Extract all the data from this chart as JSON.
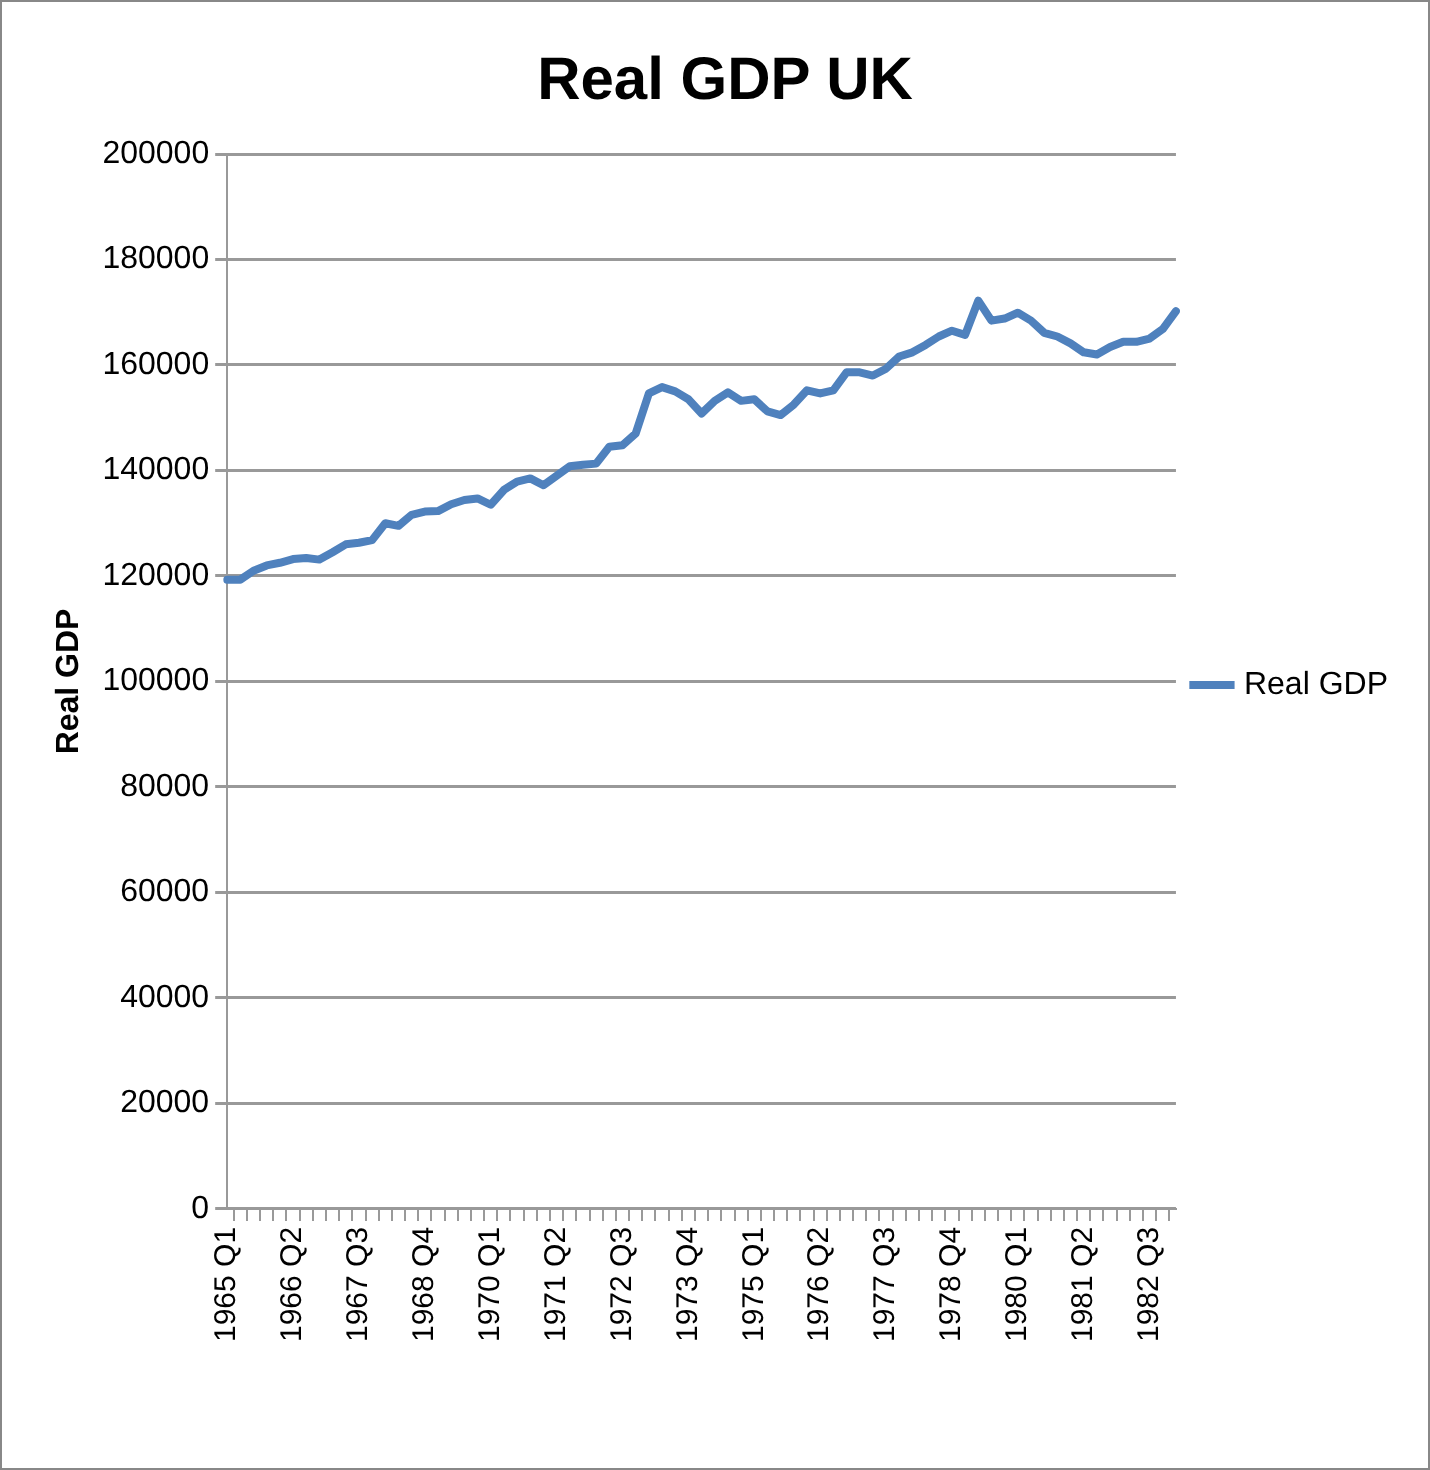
{
  "chart_data": {
    "type": "line",
    "title": "Real GDP UK",
    "ylabel": "Real GDP",
    "categories": [
      "1965 Q1",
      null,
      null,
      null,
      null,
      "1966 Q2",
      null,
      null,
      null,
      null,
      "1967 Q3",
      null,
      null,
      null,
      null,
      "1968 Q4",
      null,
      null,
      null,
      null,
      "1970 Q1",
      null,
      null,
      null,
      null,
      "1971 Q2",
      null,
      null,
      null,
      null,
      "1972 Q3",
      null,
      null,
      null,
      null,
      "1973 Q4",
      null,
      null,
      null,
      null,
      "1975 Q1",
      null,
      null,
      null,
      null,
      "1976 Q2",
      null,
      null,
      null,
      null,
      "1977 Q3",
      null,
      null,
      null,
      null,
      "1978 Q4",
      null,
      null,
      null,
      null,
      "1980 Q1",
      null,
      null,
      null,
      null,
      "1981 Q2",
      null,
      null,
      null,
      null,
      "1982 Q3",
      null,
      null
    ],
    "series": [
      {
        "name": "Real GDP",
        "color": "#4f81bd",
        "values": [
          119300,
          119300,
          121000,
          122000,
          122500,
          123200,
          123400,
          123100,
          124500,
          126000,
          126300,
          126800,
          130000,
          129500,
          131600,
          132200,
          132300,
          133600,
          134400,
          134700,
          133500,
          136300,
          137900,
          138500,
          137200,
          139000,
          140800,
          141100,
          141300,
          144500,
          144800,
          147000,
          154600,
          155800,
          155000,
          153500,
          150800,
          153200,
          154800,
          153200,
          153500,
          151200,
          150500,
          152500,
          155200,
          154600,
          155200,
          158600,
          158600,
          158000,
          159300,
          161600,
          162400,
          163800,
          165400,
          166500,
          165700,
          172200,
          168400,
          168800,
          169900,
          168400,
          166100,
          165400,
          164100,
          162400,
          162000,
          163400,
          164400,
          164400,
          165000,
          166800,
          170200
        ]
      }
    ],
    "ylim": [
      0,
      200000
    ],
    "yticks": [
      0,
      20000,
      40000,
      60000,
      80000,
      100000,
      120000,
      140000,
      160000,
      180000,
      200000
    ],
    "grid": "y",
    "legend": "right",
    "marker": "none",
    "line_style": "solid"
  }
}
